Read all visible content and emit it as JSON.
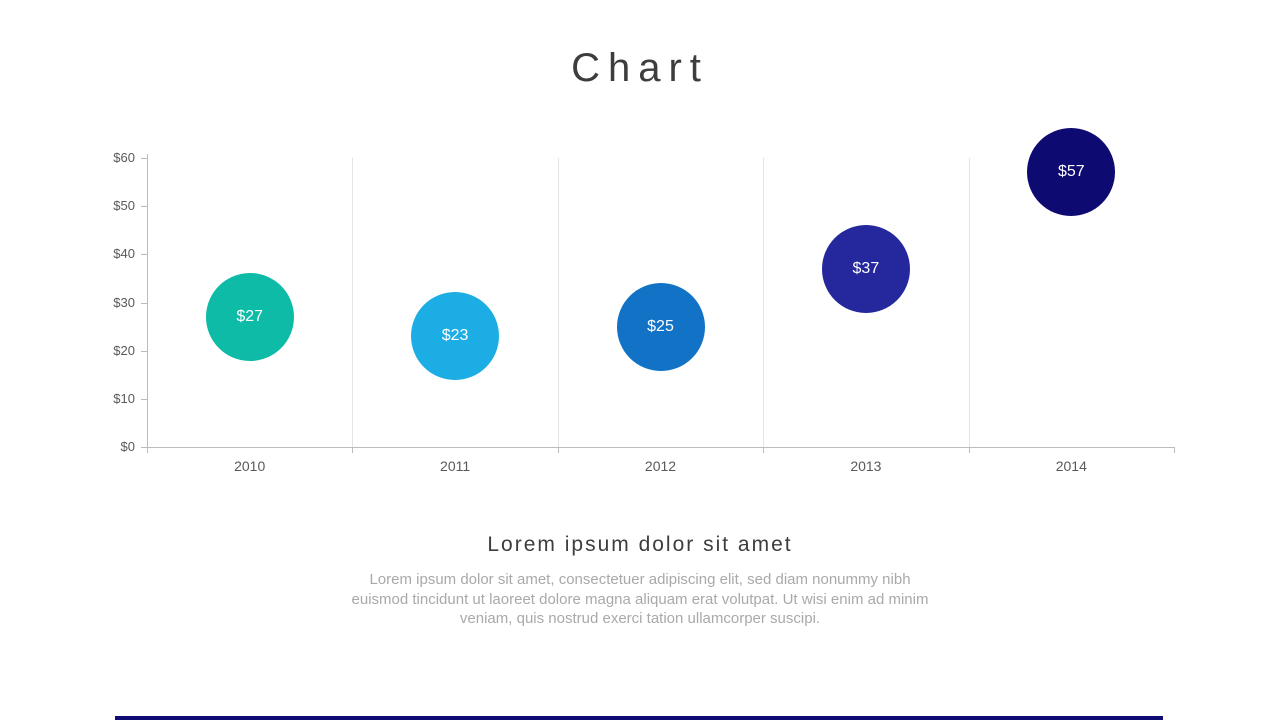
{
  "slide": {
    "title": "Chart",
    "subtitle": "Lorem ipsum dolor sit amet",
    "body_text": "Lorem ipsum dolor sit amet, consectetuer adipiscing elit, sed diam nonummy nibh\neuismod tincidunt ut laoreet dolore magna aliquam erat volutpat. Ut wisi enim ad minim\nveniam, quis nostrud exerci tation ullamcorper suscipi.",
    "accent_bar_color": "#0e0b74"
  },
  "chart_data": {
    "type": "scatter",
    "subtype": "bubble",
    "title": "Chart",
    "categories": [
      "2010",
      "2011",
      "2012",
      "2013",
      "2014"
    ],
    "values": [
      27,
      23,
      25,
      37,
      57
    ],
    "point_labels": [
      "$27",
      "$23",
      "$25",
      "$37",
      "$57"
    ],
    "bubble_colors": [
      "#0dbba7",
      "#1cade4",
      "#1273c6",
      "#24289c",
      "#0d0a72"
    ],
    "point_label_color": "#ffffff",
    "y_ticks": [
      "$60",
      "$50",
      "$40",
      "$30",
      "$20",
      "$10",
      "$0"
    ],
    "ylim": [
      0,
      60
    ],
    "xlabel": "",
    "ylabel": "",
    "grid": "vertical category separators only",
    "legend": "none"
  }
}
